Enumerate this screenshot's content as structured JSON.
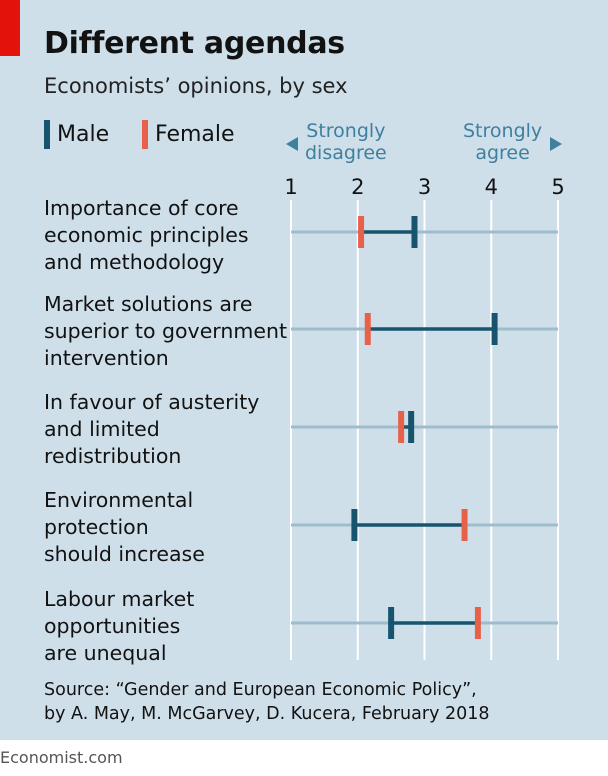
{
  "header": {
    "title": "Different agendas",
    "subtitle": "Economists’ opinions, by sex"
  },
  "legend": {
    "male_label": "Male",
    "female_label": "Female"
  },
  "scale_notes": {
    "left": [
      "Strongly",
      "disagree"
    ],
    "right": [
      "Strongly",
      "agree"
    ]
  },
  "colors": {
    "background": "#cfdfea",
    "male": "#17546e",
    "female": "#e7614a",
    "track": "#9fbccc",
    "gridline": "#ffffff",
    "accent_red": "#e3120b",
    "scale_note": "#3f7f9f"
  },
  "chart_data": {
    "type": "dumbbell",
    "title": "Different agendas",
    "subtitle": "Economists’ opinions, by sex",
    "xlim": [
      1,
      5
    ],
    "ticks": [
      "1",
      "2",
      "3",
      "4",
      "5"
    ],
    "grid": true,
    "legend_position": "top-left",
    "series": [
      {
        "name": "Male",
        "color": "#17546e"
      },
      {
        "name": "Female",
        "color": "#e7614a"
      }
    ],
    "categories": [
      {
        "label": [
          "Importance of core",
          "economic principles",
          "and methodology"
        ],
        "male": 2.85,
        "female": 2.05
      },
      {
        "label": [
          "Market solutions are",
          "superior to government",
          "intervention"
        ],
        "male": 4.05,
        "female": 2.15
      },
      {
        "label": [
          "In favour of austerity",
          "and limited",
          "redistribution"
        ],
        "male": 2.8,
        "female": 2.65
      },
      {
        "label": [
          "Environmental",
          "protection",
          "should increase"
        ],
        "male": 1.95,
        "female": 3.6
      },
      {
        "label": [
          "Labour market",
          "opportunities",
          "are unequal"
        ],
        "male": 2.5,
        "female": 3.8
      }
    ]
  },
  "source": [
    "Source: “Gender and European Economic Policy”,",
    "by A. May, M. McGarvey, D. Kucera, February 2018"
  ],
  "footer": "Economist.com"
}
